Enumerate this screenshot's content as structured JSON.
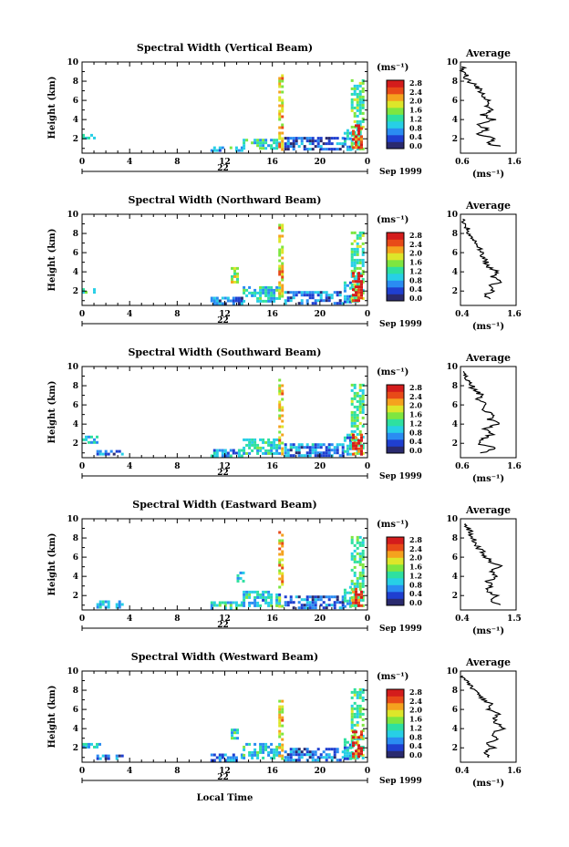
{
  "chart_data": {
    "type": "heatmap",
    "x_label": "Local Time",
    "y_label": "Height (km)",
    "xlim": [
      0,
      24
    ],
    "ylim": [
      0.5,
      10
    ],
    "x_ticks": [
      "0",
      "4",
      "8",
      "12",
      "16",
      "20",
      "0"
    ],
    "y_ticks": [
      "2",
      "4",
      "6",
      "8",
      "10"
    ],
    "day_label": "22",
    "date_label": "Sep 1999",
    "colorbar": {
      "unit": "(ms⁻¹)",
      "ticks": [
        "2.8",
        "2.4",
        "2.0",
        "1.6",
        "1.2",
        "0.8",
        "0.4",
        "0.0"
      ],
      "range": [
        0.0,
        2.8
      ],
      "colors": [
        "#2a2a6e",
        "#1f3fd0",
        "#2a8cf2",
        "#27cfe6",
        "#2ee0a0",
        "#7ee640",
        "#dde62a",
        "#f5a21e",
        "#e84a18",
        "#d41c1c"
      ]
    },
    "avg_title": "Average",
    "avg_unit": "(ms⁻¹)",
    "panels": [
      {
        "title": "Spectral Width (Vertical Beam)",
        "day_label": "22",
        "avg_x_ticks": [
          "0.6",
          "1.6"
        ],
        "avg_xlim": [
          0.6,
          1.6
        ],
        "regions": [
          {
            "x": [
              0.0,
              1.0
            ],
            "y": [
              2.0,
              2.5
            ],
            "v": 1.1
          },
          {
            "x": [
              10.8,
              13.5
            ],
            "y": [
              0.7,
              1.2
            ],
            "v": 1.0
          },
          {
            "x": [
              13.5,
              16.5
            ],
            "y": [
              1.0,
              2.0
            ],
            "v": 1.1
          },
          {
            "x": [
              16.5,
              16.9
            ],
            "y": [
              1.0,
              9.0
            ],
            "v": 1.9
          },
          {
            "x": [
              17.0,
              22.0
            ],
            "y": [
              0.8,
              2.2
            ],
            "v": 0.5
          },
          {
            "x": [
              22.0,
              22.6
            ],
            "y": [
              0.8,
              3.0
            ],
            "v": 0.8
          },
          {
            "x": [
              22.6,
              23.6
            ],
            "y": [
              0.8,
              8.2
            ],
            "v": 1.3
          },
          {
            "x": [
              22.7,
              23.5
            ],
            "y": [
              1.0,
              3.5
            ],
            "v": 2.6
          }
        ],
        "avg_profile": [
          [
            1.3,
            1.2
          ],
          [
            1.1,
            1.5
          ],
          [
            1.2,
            2.0
          ],
          [
            0.9,
            2.5
          ],
          [
            1.1,
            3.0
          ],
          [
            0.9,
            3.5
          ],
          [
            1.2,
            4.0
          ],
          [
            1.0,
            4.5
          ],
          [
            1.15,
            5.0
          ],
          [
            1.05,
            5.5
          ],
          [
            1.1,
            6.0
          ],
          [
            1.0,
            6.5
          ],
          [
            0.95,
            7.0
          ],
          [
            0.9,
            7.5
          ],
          [
            0.75,
            8.0
          ],
          [
            0.7,
            8.5
          ],
          [
            0.65,
            9.0
          ],
          [
            0.62,
            9.5
          ]
        ]
      },
      {
        "title": "Spectral Width (Northward Beam)",
        "day_label": "22",
        "avg_x_ticks": [
          "0.4",
          "1.6"
        ],
        "avg_xlim": [
          0.4,
          1.6
        ],
        "regions": [
          {
            "x": [
              0.0,
              1.0
            ],
            "y": [
              1.8,
              2.3
            ],
            "v": 1.1
          },
          {
            "x": [
              10.8,
              13.5
            ],
            "y": [
              0.8,
              1.4
            ],
            "v": 0.6
          },
          {
            "x": [
              12.5,
              13.0
            ],
            "y": [
              3.0,
              4.5
            ],
            "v": 1.6
          },
          {
            "x": [
              13.5,
              16.5
            ],
            "y": [
              1.0,
              2.5
            ],
            "v": 1.0
          },
          {
            "x": [
              16.5,
              16.9
            ],
            "y": [
              1.0,
              9.0
            ],
            "v": 1.9
          },
          {
            "x": [
              17.0,
              22.0
            ],
            "y": [
              0.8,
              2.0
            ],
            "v": 0.6
          },
          {
            "x": [
              22.0,
              22.6
            ],
            "y": [
              0.8,
              3.0
            ],
            "v": 0.9
          },
          {
            "x": [
              22.6,
              23.6
            ],
            "y": [
              0.8,
              8.2
            ],
            "v": 1.3
          },
          {
            "x": [
              22.7,
              23.5
            ],
            "y": [
              1.0,
              4.0
            ],
            "v": 2.6
          }
        ],
        "avg_profile": [
          [
            1.0,
            1.2
          ],
          [
            0.9,
            1.5
          ],
          [
            1.1,
            2.0
          ],
          [
            1.0,
            2.5
          ],
          [
            1.3,
            3.0
          ],
          [
            1.1,
            3.5
          ],
          [
            1.2,
            4.0
          ],
          [
            1.0,
            4.5
          ],
          [
            0.95,
            5.0
          ],
          [
            0.9,
            5.5
          ],
          [
            0.85,
            6.0
          ],
          [
            0.8,
            6.5
          ],
          [
            0.7,
            7.0
          ],
          [
            0.65,
            7.5
          ],
          [
            0.6,
            8.0
          ],
          [
            0.55,
            8.5
          ],
          [
            0.5,
            9.0
          ],
          [
            0.45,
            9.5
          ]
        ]
      },
      {
        "title": "Spectral Width (Southward Beam)",
        "day_label": "22",
        "avg_x_ticks": [
          "0.6",
          "1.6"
        ],
        "avg_xlim": [
          0.6,
          1.6
        ],
        "regions": [
          {
            "x": [
              0.0,
              1.2
            ],
            "y": [
              2.0,
              2.8
            ],
            "v": 1.0
          },
          {
            "x": [
              1.2,
              3.5
            ],
            "y": [
              0.8,
              1.3
            ],
            "v": 0.6
          },
          {
            "x": [
              10.8,
              13.5
            ],
            "y": [
              0.8,
              1.4
            ],
            "v": 0.8
          },
          {
            "x": [
              13.5,
              16.5
            ],
            "y": [
              1.0,
              2.5
            ],
            "v": 1.1
          },
          {
            "x": [
              16.5,
              16.9
            ],
            "y": [
              1.0,
              9.0
            ],
            "v": 1.9
          },
          {
            "x": [
              17.0,
              22.0
            ],
            "y": [
              0.8,
              2.0
            ],
            "v": 0.7
          },
          {
            "x": [
              22.0,
              22.6
            ],
            "y": [
              0.8,
              3.0
            ],
            "v": 0.9
          },
          {
            "x": [
              22.6,
              23.6
            ],
            "y": [
              0.8,
              8.2
            ],
            "v": 1.3
          },
          {
            "x": [
              22.7,
              23.5
            ],
            "y": [
              1.0,
              3.0
            ],
            "v": 2.6
          }
        ],
        "avg_profile": [
          [
            1.0,
            1.0
          ],
          [
            1.2,
            1.5
          ],
          [
            0.9,
            2.0
          ],
          [
            1.0,
            2.5
          ],
          [
            1.2,
            3.0
          ],
          [
            1.0,
            3.5
          ],
          [
            1.3,
            4.0
          ],
          [
            1.1,
            4.5
          ],
          [
            1.2,
            5.0
          ],
          [
            1.0,
            5.5
          ],
          [
            1.1,
            6.0
          ],
          [
            0.9,
            6.5
          ],
          [
            1.0,
            7.0
          ],
          [
            0.85,
            7.5
          ],
          [
            0.8,
            8.0
          ],
          [
            0.75,
            8.5
          ],
          [
            0.7,
            9.0
          ],
          [
            0.65,
            9.5
          ]
        ]
      },
      {
        "title": "Spectral Width (Eastward Beam)",
        "day_label": "22",
        "avg_x_ticks": [
          "0.4",
          "1.5"
        ],
        "avg_xlim": [
          0.4,
          1.5
        ],
        "regions": [
          {
            "x": [
              1.2,
              3.5
            ],
            "y": [
              0.8,
              1.5
            ],
            "v": 1.0
          },
          {
            "x": [
              10.8,
              13.5
            ],
            "y": [
              0.8,
              1.4
            ],
            "v": 1.0
          },
          {
            "x": [
              13.0,
              13.5
            ],
            "y": [
              3.5,
              4.5
            ],
            "v": 1.0
          },
          {
            "x": [
              13.5,
              16.5
            ],
            "y": [
              1.0,
              2.5
            ],
            "v": 1.0
          },
          {
            "x": [
              16.5,
              16.9
            ],
            "y": [
              1.0,
              9.0
            ],
            "v": 1.9
          },
          {
            "x": [
              17.0,
              22.0
            ],
            "y": [
              0.8,
              2.0
            ],
            "v": 0.6
          },
          {
            "x": [
              22.0,
              22.6
            ],
            "y": [
              0.8,
              3.0
            ],
            "v": 0.9
          },
          {
            "x": [
              22.6,
              23.6
            ],
            "y": [
              0.8,
              8.2
            ],
            "v": 1.3
          },
          {
            "x": [
              22.7,
              23.5
            ],
            "y": [
              1.0,
              2.8
            ],
            "v": 2.6
          }
        ],
        "avg_profile": [
          [
            1.2,
            1.0
          ],
          [
            1.0,
            1.5
          ],
          [
            1.1,
            2.0
          ],
          [
            0.9,
            2.5
          ],
          [
            1.0,
            3.0
          ],
          [
            0.95,
            3.5
          ],
          [
            1.1,
            4.0
          ],
          [
            1.0,
            4.5
          ],
          [
            1.2,
            5.0
          ],
          [
            1.0,
            5.5
          ],
          [
            0.9,
            6.0
          ],
          [
            0.85,
            6.5
          ],
          [
            0.75,
            7.0
          ],
          [
            0.7,
            7.5
          ],
          [
            0.65,
            8.0
          ],
          [
            0.6,
            8.5
          ],
          [
            0.55,
            9.0
          ],
          [
            0.5,
            9.5
          ]
        ]
      },
      {
        "title": "Spectral Width (Westward Beam)",
        "day_label": "22",
        "avg_x_ticks": [
          "0.4",
          "1.6"
        ],
        "avg_xlim": [
          0.4,
          1.6
        ],
        "regions": [
          {
            "x": [
              0.0,
              1.5
            ],
            "y": [
              2.0,
              2.5
            ],
            "v": 1.0
          },
          {
            "x": [
              1.2,
              3.5
            ],
            "y": [
              0.8,
              1.3
            ],
            "v": 0.6
          },
          {
            "x": [
              10.8,
              13.5
            ],
            "y": [
              0.8,
              1.4
            ],
            "v": 0.7
          },
          {
            "x": [
              12.5,
              13.0
            ],
            "y": [
              3.0,
              4.0
            ],
            "v": 1.2
          },
          {
            "x": [
              13.5,
              16.5
            ],
            "y": [
              1.0,
              2.5
            ],
            "v": 1.0
          },
          {
            "x": [
              16.5,
              16.9
            ],
            "y": [
              1.0,
              7.0
            ],
            "v": 1.9
          },
          {
            "x": [
              17.0,
              22.0
            ],
            "y": [
              0.8,
              2.0
            ],
            "v": 0.6
          },
          {
            "x": [
              22.0,
              22.6
            ],
            "y": [
              0.8,
              3.0
            ],
            "v": 0.9
          },
          {
            "x": [
              22.6,
              23.6
            ],
            "y": [
              0.8,
              8.2
            ],
            "v": 1.3
          },
          {
            "x": [
              22.7,
              23.5
            ],
            "y": [
              1.0,
              3.8
            ],
            "v": 2.6
          }
        ],
        "avg_profile": [
          [
            1.0,
            1.0
          ],
          [
            0.9,
            1.5
          ],
          [
            1.1,
            2.0
          ],
          [
            1.0,
            2.5
          ],
          [
            1.2,
            3.0
          ],
          [
            1.1,
            3.5
          ],
          [
            1.3,
            4.0
          ],
          [
            1.2,
            4.5
          ],
          [
            1.1,
            5.0
          ],
          [
            1.2,
            5.5
          ],
          [
            1.0,
            6.0
          ],
          [
            1.1,
            6.5
          ],
          [
            0.9,
            7.0
          ],
          [
            0.8,
            7.5
          ],
          [
            0.7,
            8.0
          ],
          [
            0.6,
            8.5
          ],
          [
            0.5,
            9.0
          ],
          [
            0.45,
            9.5
          ]
        ]
      }
    ]
  }
}
